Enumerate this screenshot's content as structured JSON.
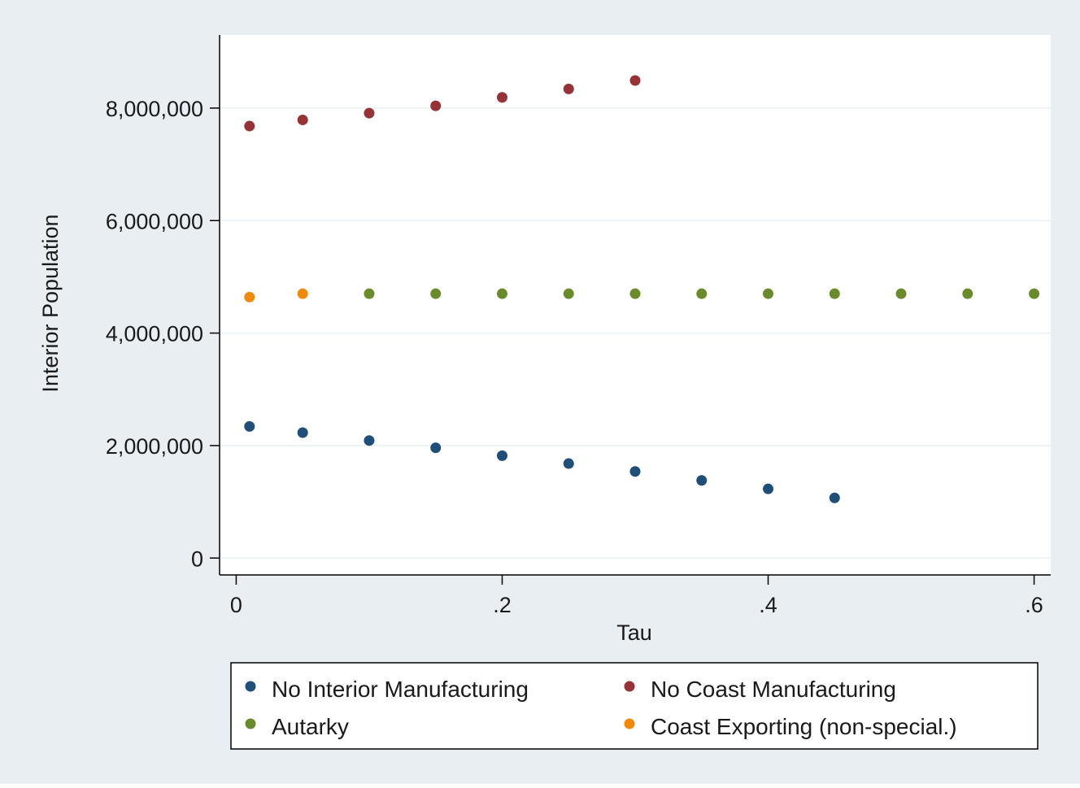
{
  "chart_data": {
    "type": "scatter",
    "title": "",
    "xlabel": "Tau",
    "ylabel": "Interior Population",
    "xlim": [
      -0.0125,
      0.6125
    ],
    "ylim": [
      -300000,
      9300000
    ],
    "x_ticks": [
      0,
      0.2,
      0.4,
      0.6
    ],
    "x_tick_labels": [
      "0",
      ".2",
      ".4",
      ".6"
    ],
    "y_ticks": [
      0,
      2000000,
      4000000,
      6000000,
      8000000
    ],
    "y_tick_labels": [
      "0",
      "2,000,000",
      "4,000,000",
      "6,000,000",
      "8,000,000"
    ],
    "grid": "horizontal",
    "background": "#e9eef2",
    "plot_background": "#ffffff",
    "legend": {
      "placement": "bottom",
      "columns": 2,
      "order": [
        "No Interior Manufacturing",
        "No Coast Manufacturing",
        "Autarky",
        "Coast Exporting (non-special.)"
      ]
    },
    "series": [
      {
        "name": "No Interior Manufacturing",
        "color": "#1f4e79",
        "x": [
          0.01,
          0.05,
          0.1,
          0.15,
          0.2,
          0.25,
          0.3,
          0.35,
          0.4,
          0.45
        ],
        "y": [
          2340000,
          2230000,
          2090000,
          1960000,
          1820000,
          1680000,
          1540000,
          1380000,
          1230000,
          1070000
        ]
      },
      {
        "name": "No Coast Manufacturing",
        "color": "#953337",
        "x": [
          0.01,
          0.05,
          0.1,
          0.15,
          0.2,
          0.25,
          0.3
        ],
        "y": [
          7680000,
          7790000,
          7910000,
          8040000,
          8190000,
          8340000,
          8490000
        ]
      },
      {
        "name": "Autarky",
        "color": "#6a8b2b",
        "x": [
          0.1,
          0.15,
          0.2,
          0.25,
          0.3,
          0.35,
          0.4,
          0.45,
          0.5,
          0.55,
          0.6
        ],
        "y": [
          4700000,
          4700000,
          4700000,
          4700000,
          4700000,
          4700000,
          4700000,
          4700000,
          4700000,
          4700000,
          4700000
        ]
      },
      {
        "name": "Coast Exporting (non-special.)",
        "color": "#f08a0c",
        "x": [
          0.01,
          0.05
        ],
        "y": [
          4640000,
          4700000
        ]
      }
    ]
  }
}
